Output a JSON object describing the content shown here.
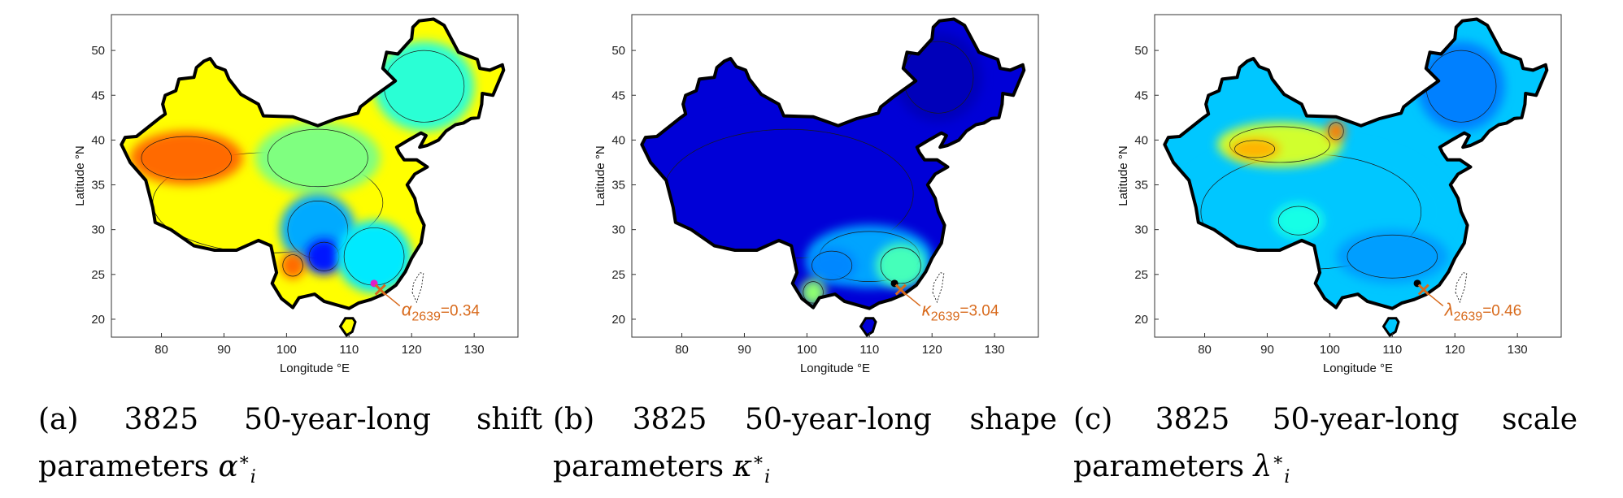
{
  "chart_data": [
    {
      "type": "heatmap",
      "panel_label": "(a)",
      "caption": "3825 50-year-long shift parameters",
      "symbol": "α",
      "xlabel": "Longitude °E",
      "ylabel": "Latitude °N",
      "xlim": [
        72,
        137
      ],
      "ylim": [
        18,
        54
      ],
      "xticks": [
        80,
        90,
        100,
        110,
        120,
        130
      ],
      "yticks": [
        20,
        25,
        30,
        35,
        40,
        45,
        50
      ],
      "colorbar": {
        "min": 0.08,
        "max": 0.56,
        "ticks": [
          0.1,
          0.2,
          0.3,
          0.4,
          0.5
        ]
      },
      "annotation": {
        "symbol": "α",
        "subscript": "2639",
        "value": "=0.34",
        "lon": 115,
        "lat": 23.3
      },
      "marker": {
        "lon": 114,
        "lat": 24,
        "color": "#e01ec8"
      },
      "regions": [
        {
          "lon": 97,
          "lat": 33,
          "rx": 23,
          "ry": 7,
          "value": 0.38
        },
        {
          "lon": 84,
          "lat": 38,
          "rx": 9,
          "ry": 3,
          "value": 0.45
        },
        {
          "lon": 105,
          "lat": 38,
          "rx": 10,
          "ry": 4,
          "value": 0.32
        },
        {
          "lon": 105,
          "lat": 30,
          "rx": 6,
          "ry": 4,
          "value": 0.22
        },
        {
          "lon": 106,
          "lat": 27,
          "rx": 3,
          "ry": 2,
          "value": 0.15
        },
        {
          "lon": 114,
          "lat": 27,
          "rx": 6,
          "ry": 4,
          "value": 0.25
        },
        {
          "lon": 101,
          "lat": 26,
          "rx": 2,
          "ry": 1.5,
          "value": 0.45
        },
        {
          "lon": 122,
          "lat": 46,
          "rx": 8,
          "ry": 5,
          "value": 0.28
        }
      ]
    },
    {
      "type": "heatmap",
      "panel_label": "(b)",
      "caption": "3825 50-year-long shape parameters",
      "symbol": "κ",
      "xlabel": "Longitude °E",
      "ylabel": "Latitude °N",
      "xlim": [
        72,
        137
      ],
      "ylim": [
        18,
        54
      ],
      "xticks": [
        80,
        90,
        100,
        110,
        120,
        130
      ],
      "yticks": [
        20,
        25,
        30,
        35,
        40,
        45,
        50
      ],
      "colorbar": {
        "min": 0,
        "max": 7,
        "ticks": [
          0,
          2,
          4,
          6
        ]
      },
      "annotation": {
        "symbol": "κ",
        "subscript": "2639",
        "value": "=3.04",
        "lon": 115,
        "lat": 23.3
      },
      "marker": {
        "lon": 114,
        "lat": 24,
        "color": "#000000"
      },
      "regions": [
        {
          "lon": 97,
          "lat": 34,
          "rx": 25,
          "ry": 9,
          "value": 0.6
        },
        {
          "lon": 110,
          "lat": 27,
          "rx": 10,
          "ry": 3.5,
          "value": 2.0
        },
        {
          "lon": 115,
          "lat": 26,
          "rx": 4,
          "ry": 2.5,
          "value": 3.1
        },
        {
          "lon": 104,
          "lat": 26,
          "rx": 4,
          "ry": 2,
          "value": 1.8
        },
        {
          "lon": 101,
          "lat": 23,
          "rx": 2,
          "ry": 1.5,
          "value": 3.6
        },
        {
          "lon": 121,
          "lat": 47,
          "rx": 7,
          "ry": 5,
          "value": 0.4
        }
      ]
    },
    {
      "type": "heatmap",
      "panel_label": "(c)",
      "caption": "3825 50-year-long scale parameters",
      "symbol": "λ",
      "xlabel": "Longitude °E",
      "ylabel": "Latitude °N",
      "xlim": [
        72,
        137
      ],
      "ylim": [
        18,
        54
      ],
      "xticks": [
        80,
        90,
        100,
        110,
        120,
        130
      ],
      "yticks": [
        20,
        25,
        30,
        35,
        40,
        45,
        50
      ],
      "colorbar": {
        "min": 0.2,
        "max": 1.2,
        "ticks": [
          0.2,
          0.4,
          0.6,
          0.8,
          1,
          1.2
        ]
      },
      "annotation": {
        "symbol": "λ",
        "subscript": "2639",
        "value": "=0.46",
        "lon": 115,
        "lat": 23.3
      },
      "marker": {
        "lon": 114,
        "lat": 24,
        "color": "#000000"
      },
      "regions": [
        {
          "lon": 97,
          "lat": 32,
          "rx": 22,
          "ry": 8,
          "value": 0.52
        },
        {
          "lon": 92,
          "lat": 39.5,
          "rx": 10,
          "ry": 2.5,
          "value": 0.78
        },
        {
          "lon": 88,
          "lat": 39,
          "rx": 4,
          "ry": 1.2,
          "value": 0.9
        },
        {
          "lon": 95,
          "lat": 31,
          "rx": 4,
          "ry": 2,
          "value": 0.6
        },
        {
          "lon": 110,
          "lat": 27,
          "rx": 9,
          "ry": 3,
          "value": 0.48
        },
        {
          "lon": 101,
          "lat": 41,
          "rx": 1.5,
          "ry": 1.2,
          "value": 0.95
        },
        {
          "lon": 121,
          "lat": 46,
          "rx": 7,
          "ry": 5,
          "value": 0.45
        }
      ]
    }
  ]
}
